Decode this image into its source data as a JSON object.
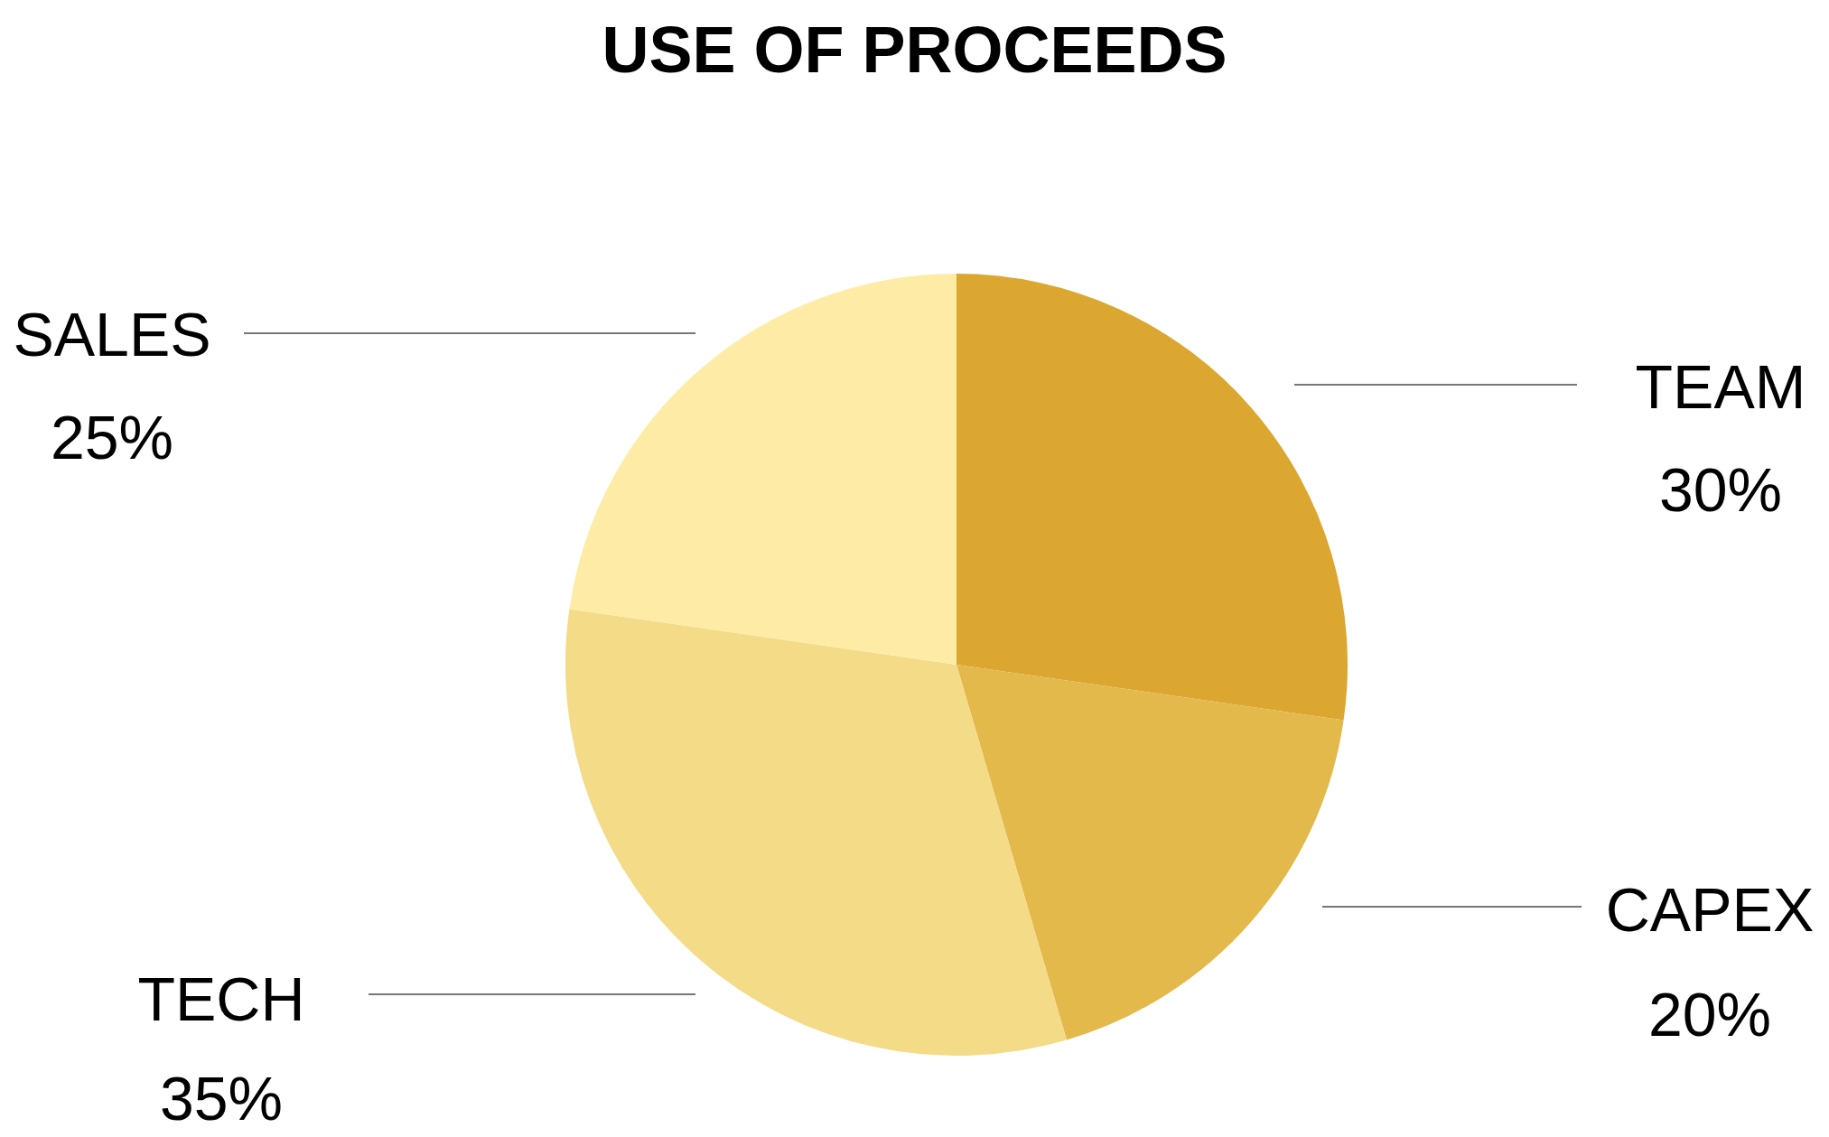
{
  "chart_data": {
    "type": "pie",
    "title": "USE OF PROCEEDS",
    "categories": [
      "TEAM",
      "CAPEX",
      "TECH",
      "SALES"
    ],
    "values": [
      30,
      20,
      35,
      25
    ],
    "value_labels": [
      "30%",
      "20%",
      "35%",
      "25%"
    ],
    "colors": [
      "#dba731",
      "#e3b94b",
      "#f4db87",
      "#feeca6"
    ],
    "legend": false
  }
}
